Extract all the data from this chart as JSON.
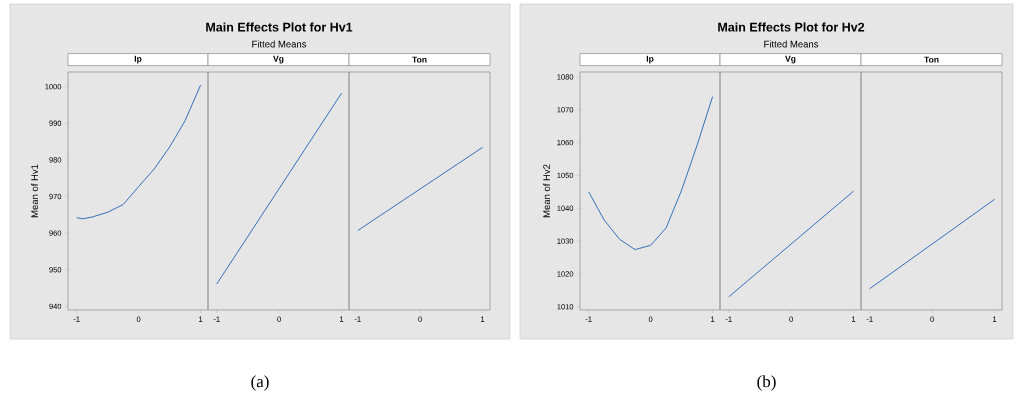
{
  "chart_data": [
    {
      "type": "line",
      "title": "Ip",
      "ylabel": "Mean of Hv1",
      "annotations": [
        "Main Effects Plot for Hv1",
        "Fitted Means",
        "(a)"
      ],
      "series": [
        {
          "color": "#1f63b8",
          "x": [
            -1,
            -0.9,
            -0.75,
            -0.5,
            -0.25,
            0,
            0.25,
            0.5,
            0.75,
            1
          ],
          "values": [
            964.2,
            963.9,
            964.4,
            965.7,
            967.8,
            972.7,
            977.5,
            983.5,
            990.7,
            1000.4
          ]
        }
      ],
      "xlim": [
        -1.14,
        1.12
      ],
      "xticks": [
        -1,
        0,
        1
      ],
      "ylim": [
        939,
        1004
      ],
      "yticks": [
        940,
        950,
        960,
        970,
        980,
        990,
        1000
      ]
    },
    {
      "type": "line",
      "title": "Vg",
      "tick_labels": "x",
      "series": [
        {
          "color": "#1f63b8",
          "x": [
            -1,
            1
          ],
          "values": [
            946.1,
            998.2
          ]
        }
      ],
      "xlim": [
        -1.14,
        1.12
      ],
      "xticks": [
        -1,
        0,
        1
      ],
      "ylim": [
        939,
        1004
      ]
    },
    {
      "type": "line",
      "title": "Ton",
      "tick_labels": "x",
      "series": [
        {
          "color": "#1f63b8",
          "x": [
            -1,
            1
          ],
          "values": [
            960.7,
            983.4
          ]
        }
      ],
      "xlim": [
        -1.14,
        1.12
      ],
      "xticks": [
        -1,
        0,
        1
      ],
      "ylim": [
        939,
        1004
      ]
    },
    {
      "type": "line",
      "title": "Ip",
      "ylabel": "Mean of Hv2",
      "annotations": [
        "Main Effects Plot for Hv2",
        "Fitted Means",
        "(b)"
      ],
      "series": [
        {
          "color": "#1f63b8",
          "x": [
            -1,
            -0.75,
            -0.5,
            -0.25,
            0,
            0.25,
            0.5,
            0.75,
            1
          ],
          "values": [
            1045.0,
            1036.4,
            1030.5,
            1027.4,
            1028.7,
            1034.0,
            1045.5,
            1059.2,
            1074.0
          ]
        }
      ],
      "xlim": [
        -1.14,
        1.12
      ],
      "xticks": [
        -1,
        0,
        1
      ],
      "ylim": [
        1009,
        1081.5
      ],
      "yticks": [
        1010,
        1020,
        1030,
        1040,
        1050,
        1060,
        1070,
        1080
      ]
    },
    {
      "type": "line",
      "title": "Vg",
      "tick_labels": "x",
      "series": [
        {
          "color": "#1f63b8",
          "x": [
            -1,
            1
          ],
          "values": [
            1013.0,
            1045.2
          ]
        }
      ],
      "xlim": [
        -1.14,
        1.12
      ],
      "xticks": [
        -1,
        0,
        1
      ],
      "ylim": [
        1009,
        1081.5
      ]
    },
    {
      "type": "line",
      "title": "Ton",
      "tick_labels": "x",
      "series": [
        {
          "color": "#1f63b8",
          "x": [
            -1,
            1
          ],
          "values": [
            1015.5,
            1042.7
          ]
        }
      ],
      "xlim": [
        -1.14,
        1.12
      ],
      "xticks": [
        -1,
        0,
        1
      ],
      "ylim": [
        1009,
        1081.5
      ]
    }
  ]
}
